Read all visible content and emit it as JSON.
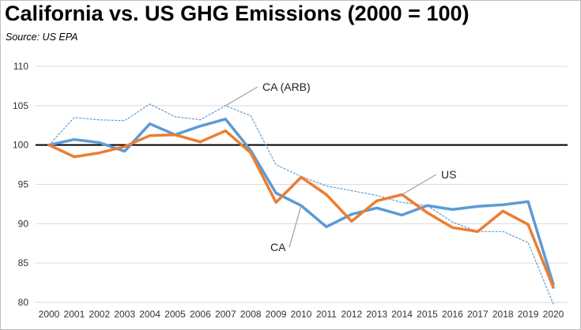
{
  "chart_data": {
    "type": "line",
    "title": "California vs. US GHG Emissions (2000 = 100)",
    "subtitle": "Source:  US EPA",
    "xlabel": "",
    "ylabel": "",
    "ylim": [
      80,
      110
    ],
    "yticks": [
      "80",
      "85",
      "90",
      "95",
      "100",
      "105",
      "110"
    ],
    "categories": [
      "2000",
      "2001",
      "2002",
      "2003",
      "2004",
      "2005",
      "2006",
      "2007",
      "2008",
      "2009",
      "2010",
      "2011",
      "2012",
      "2013",
      "2014",
      "2015",
      "2016",
      "2017",
      "2018",
      "2019",
      "2020"
    ],
    "grid": true,
    "baseline": 100,
    "series": [
      {
        "name": "CA",
        "color": "#5b9bd5",
        "style": "solid",
        "values": [
          100,
          100.7,
          100.3,
          99.2,
          102.7,
          101.3,
          102.4,
          103.3,
          99.3,
          93.9,
          92.3,
          89.6,
          91.2,
          92.0,
          91.1,
          92.3,
          91.8,
          92.2,
          92.4,
          92.8,
          82.3
        ]
      },
      {
        "name": "US",
        "color": "#ed7d31",
        "style": "solid",
        "values": [
          100,
          98.5,
          99.0,
          99.8,
          101.2,
          101.3,
          100.4,
          101.8,
          99.0,
          92.7,
          95.9,
          93.7,
          90.3,
          92.9,
          93.7,
          91.4,
          89.5,
          89.0,
          91.6,
          89.9,
          81.9
        ]
      },
      {
        "name": "CA (ARB)",
        "color": "#5b9bd5",
        "style": "dotted",
        "values": [
          100,
          103.5,
          103.2,
          103.1,
          105.2,
          103.6,
          103.2,
          105.0,
          103.7,
          97.5,
          96.0,
          94.8,
          94.2,
          93.6,
          92.7,
          92.3,
          90.2,
          89.0,
          89.0,
          87.6,
          79.8
        ]
      }
    ],
    "annotations": [
      {
        "label": "CA (ARB)",
        "series": "CA (ARB)"
      },
      {
        "label": "US",
        "series": "US"
      },
      {
        "label": "CA",
        "series": "CA"
      }
    ]
  }
}
